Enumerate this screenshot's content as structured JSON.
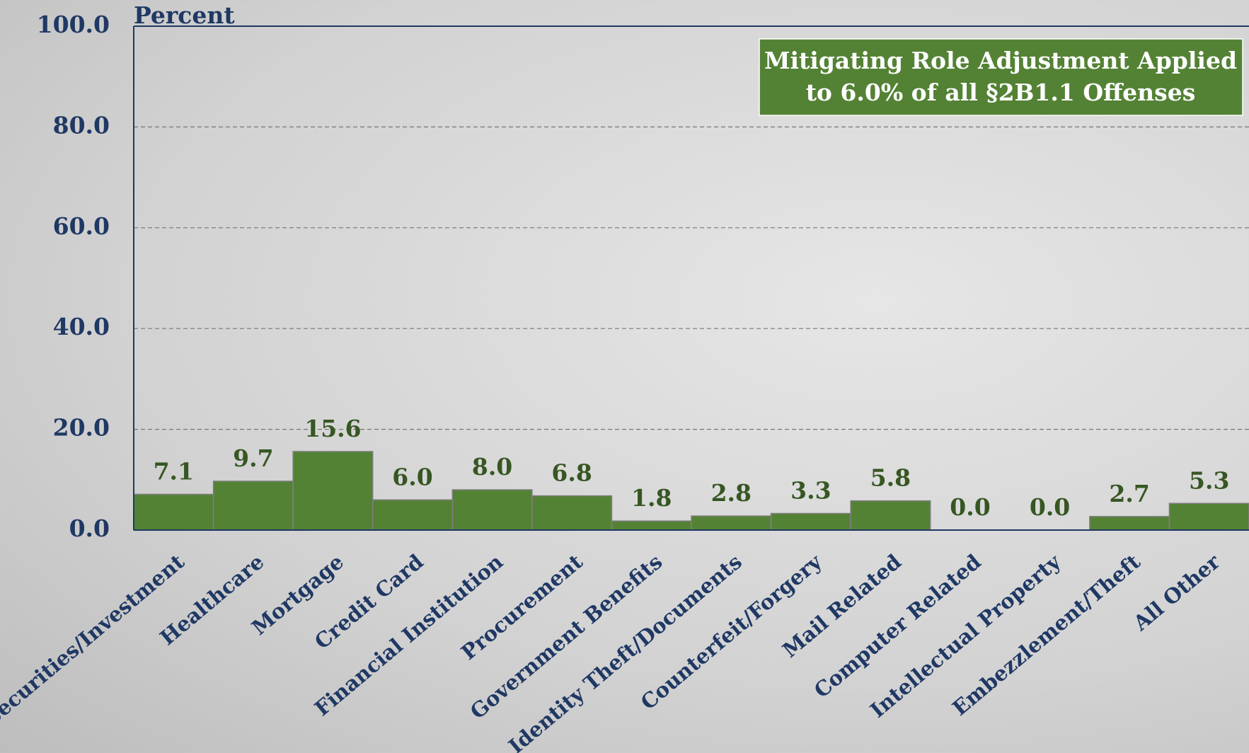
{
  "chart_data": {
    "type": "bar",
    "ylabel": "Percent",
    "annotation": [
      "Mitigating Role Adjustment Applied",
      "to 6.0% of all §2B1.1 Offenses"
    ],
    "categories": [
      "Securities/Investment",
      "Healthcare",
      "Mortgage",
      "Credit Card",
      "Financial Institution",
      "Procurement",
      "Government Benefits",
      "Identity Theft/Documents",
      "Counterfeit/Forgery",
      "Mail Related",
      "Computer Related",
      "Intellectual Property",
      "Embezzlement/Theft",
      "All Other"
    ],
    "values": [
      7.1,
      9.7,
      15.6,
      6.0,
      8.0,
      6.8,
      1.8,
      2.8,
      3.3,
      5.8,
      0.0,
      0.0,
      2.7,
      5.3
    ],
    "value_labels": [
      "7.1",
      "9.7",
      "15.6",
      "6.0",
      "8.0",
      "6.8",
      "1.8",
      "2.8",
      "3.3",
      "5.8",
      "0.0",
      "0.0",
      "2.7",
      "5.3"
    ],
    "color": "#548235",
    "ylim": [
      0,
      100
    ],
    "yticks": [
      {
        "value": 0,
        "label": "0.0"
      },
      {
        "value": 20,
        "label": "20.0"
      },
      {
        "value": 40,
        "label": "40.0"
      },
      {
        "value": 60,
        "label": "60.0"
      },
      {
        "value": 80,
        "label": "80.0"
      },
      {
        "value": 100,
        "label": "100.0"
      }
    ],
    "grid": true
  }
}
